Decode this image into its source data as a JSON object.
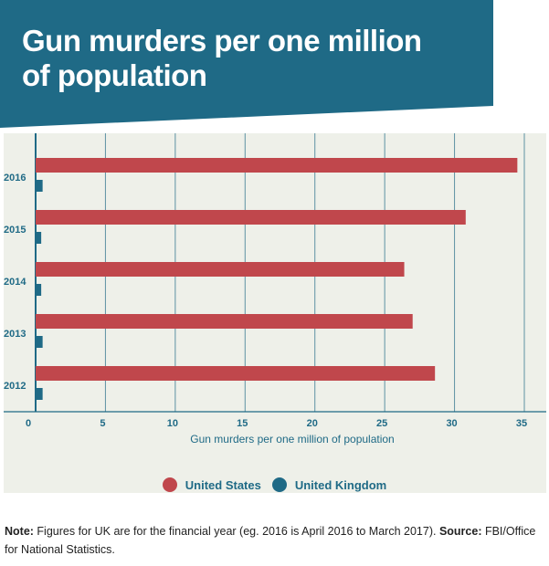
{
  "title": "Gun murders per one million of population",
  "colors": {
    "banner": "#1f6a86",
    "panel_bg": "#eef0e9",
    "us": "#c0474c",
    "uk": "#1f6a86",
    "grid": "#1f6a86"
  },
  "chart_data": {
    "type": "bar",
    "orientation": "horizontal",
    "title": "Gun murders per one million of population",
    "xlabel": "Gun murders per one million of population",
    "ylabel": "",
    "xlim": [
      0,
      35
    ],
    "xticks": [
      0,
      5,
      10,
      15,
      20,
      25,
      30,
      35
    ],
    "categories": [
      "2016",
      "2015",
      "2014",
      "2013",
      "2012"
    ],
    "series": [
      {
        "name": "United States",
        "color": "#c0474c",
        "values": [
          34.5,
          30.8,
          26.4,
          27.0,
          28.6
        ]
      },
      {
        "name": "United Kingdom",
        "color": "#1f6a86",
        "values": [
          0.5,
          0.4,
          0.4,
          0.5,
          0.5
        ]
      }
    ],
    "legend_position": "bottom-center",
    "grid": true
  },
  "legend": {
    "items": [
      {
        "label": "United States",
        "color": "#c0474c"
      },
      {
        "label": "United Kingdom",
        "color": "#1f6a86"
      }
    ]
  },
  "note": {
    "note_label": "Note:",
    "note_text": " Figures for UK are for the financial year (eg. 2016 is April 2016 to March 2017). ",
    "source_label": "Source:",
    "source_text": " FBI/Office for National Statistics."
  }
}
